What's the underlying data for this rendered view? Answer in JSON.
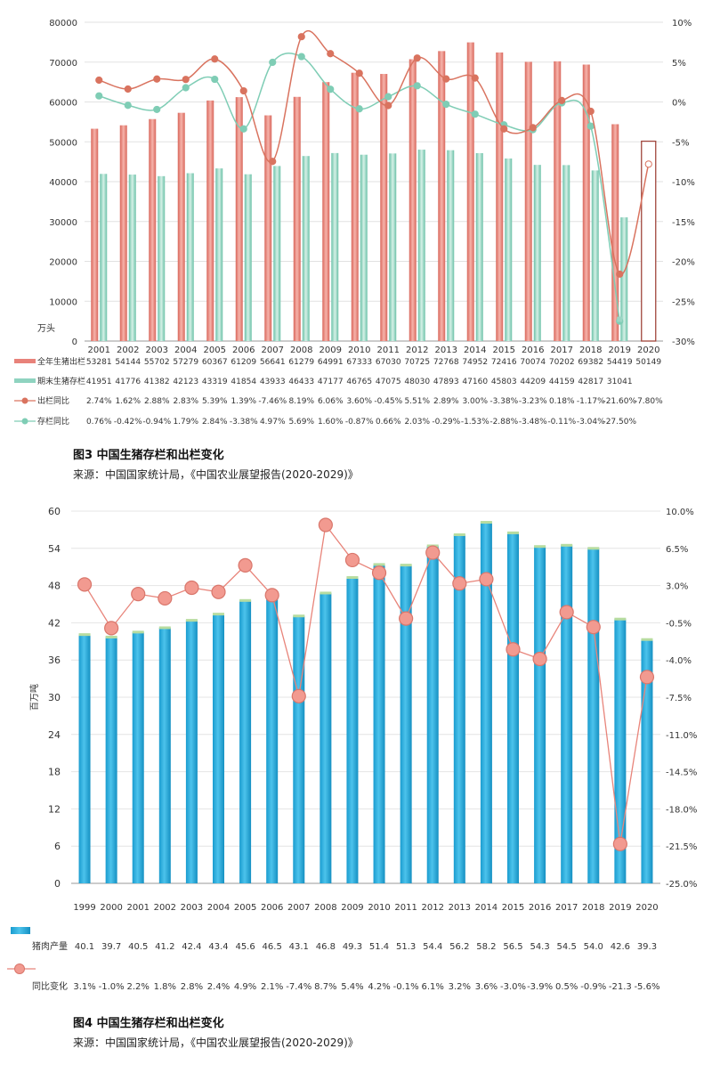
{
  "charts": [
    {
      "type": "bar",
      "years": [
        "2001",
        "2002",
        "2003",
        "2004",
        "2005",
        "2006",
        "2007",
        "2008",
        "2009",
        "2010",
        "2011",
        "2012",
        "2013",
        "2014",
        "2015",
        "2016",
        "2017",
        "2018",
        "2019",
        "2020"
      ],
      "yticks_left": [
        "0",
        "10000",
        "20000",
        "30000",
        "40000",
        "50000",
        "60000",
        "70000",
        "80000"
      ],
      "yticks_right": [
        "10%",
        "5%",
        "0%",
        "-5%",
        "-10%",
        "-15%",
        "-20%",
        "-25%",
        "-30%"
      ],
      "unit_label": "万头",
      "series": [
        {
          "name": "全年生猪出栏",
          "kind": "bar",
          "color": "#e8827a",
          "values": [
            53281,
            54144,
            55702,
            57279,
            60367,
            61209,
            56641,
            61279,
            64991,
            67333,
            67030,
            70725,
            72768,
            74952,
            72416,
            70074,
            70202,
            69382,
            54419,
            50149
          ],
          "labels": [
            "53281",
            "54144",
            "55702",
            "57279",
            "60367",
            "61209",
            "56641",
            "61279",
            "64991",
            "67333",
            "67030",
            "70725",
            "72768",
            "74952",
            "72416",
            "70074",
            "70202",
            "69382",
            "54419",
            "50149"
          ]
        },
        {
          "name": "期末生猪存栏",
          "kind": "bar",
          "color": "#8fd3c0",
          "values": [
            41951,
            41776,
            41382,
            42123,
            43319,
            41854,
            43933,
            46433,
            47177,
            46765,
            47075,
            48030,
            47893,
            47160,
            45803,
            44209,
            44159,
            42817,
            31041,
            null
          ],
          "labels": [
            "41951",
            "41776",
            "41382",
            "42123",
            "43319",
            "41854",
            "43933",
            "46433",
            "47177",
            "46765",
            "47075",
            "48030",
            "47893",
            "47160",
            "45803",
            "44209",
            "44159",
            "42817",
            "31041",
            ""
          ]
        },
        {
          "name": "出栏同比",
          "kind": "line",
          "color": "#d9735f",
          "values": [
            2.74,
            1.62,
            2.88,
            2.83,
            5.39,
            1.39,
            -7.46,
            8.19,
            6.06,
            3.6,
            -0.45,
            5.51,
            2.89,
            3.0,
            -3.38,
            -3.23,
            0.18,
            -1.17,
            -21.6,
            -7.8
          ],
          "labels": [
            "2.74%",
            "1.62%",
            "2.88%",
            "2.83%",
            "5.39%",
            "1.39%",
            "-7.46%",
            "8.19%",
            "6.06%",
            "3.60%",
            "-0.45%",
            "5.51%",
            "2.89%",
            "3.00%",
            "-3.38%",
            "-3.23%",
            "0.18%",
            "-1.17%",
            "-21.60%",
            "-7.80%"
          ]
        },
        {
          "name": "存栏同比",
          "kind": "line",
          "color": "#7fcdb5",
          "values": [
            0.76,
            -0.42,
            -0.94,
            1.79,
            2.84,
            -3.38,
            4.97,
            5.69,
            1.6,
            -0.87,
            0.66,
            2.03,
            -0.29,
            -1.53,
            -2.88,
            -3.48,
            -0.11,
            -3.04,
            -27.5,
            null
          ],
          "labels": [
            "0.76%",
            "-0.42%",
            "-0.94%",
            "1.79%",
            "2.84%",
            "-3.38%",
            "4.97%",
            "5.69%",
            "1.60%",
            "-0.87%",
            "0.66%",
            "2.03%",
            "-0.29%",
            "-1.53%",
            "-2.88%",
            "-3.48%",
            "-0.11%",
            "-3.04%",
            "-27.50%",
            ""
          ]
        }
      ],
      "ylim_left": [
        0,
        80000
      ],
      "ylim_right": [
        -30,
        10
      ],
      "caption_title": "图3  中国生猪存栏和出栏变化",
      "caption_source": "来源：中国国家统计局，《中国农业展望报告(2020-2029)》"
    },
    {
      "type": "bar",
      "years": [
        "1999",
        "2000",
        "2001",
        "2002",
        "2003",
        "2004",
        "2005",
        "2006",
        "2007",
        "2008",
        "2009",
        "2010",
        "2011",
        "2012",
        "2013",
        "2014",
        "2015",
        "2016",
        "2017",
        "2018",
        "2019",
        "2020"
      ],
      "yticks_left": [
        "0",
        "6",
        "12",
        "18",
        "24",
        "30",
        "36",
        "42",
        "48",
        "54",
        "60"
      ],
      "yticks_right": [
        "10.0%",
        "6.5%",
        "3.0%",
        "-0.5%",
        "-4.0%",
        "-7.5%",
        "-11.0%",
        "-14.5%",
        "-18.0%",
        "-21.5%",
        "-25.0%"
      ],
      "ylabel": "百万吨",
      "series": [
        {
          "name": "猪肉产量",
          "kind": "bar",
          "color": "#2aa8d8",
          "values": [
            40.1,
            39.7,
            40.5,
            41.2,
            42.4,
            43.4,
            45.6,
            46.5,
            43.1,
            46.8,
            49.3,
            51.4,
            51.3,
            54.4,
            56.2,
            58.2,
            56.5,
            54.3,
            54.5,
            54.0,
            42.6,
            39.3
          ],
          "labels": [
            "40.1",
            "39.7",
            "40.5",
            "41.2",
            "42.4",
            "43.4",
            "45.6",
            "46.5",
            "43.1",
            "46.8",
            "49.3",
            "51.4",
            "51.3",
            "54.4",
            "56.2",
            "58.2",
            "56.5",
            "54.3",
            "54.5",
            "54.0",
            "42.6",
            "39.3"
          ]
        },
        {
          "name": "同比变化",
          "kind": "line",
          "color": "#e8847a",
          "values": [
            3.1,
            -1.0,
            2.2,
            1.8,
            2.8,
            2.4,
            4.9,
            2.1,
            -7.4,
            8.7,
            5.4,
            4.2,
            -0.1,
            6.1,
            3.2,
            3.6,
            -3.0,
            -3.9,
            0.5,
            -0.9,
            -21.3,
            -5.6
          ],
          "labels": [
            "3.1%",
            "-1.0%",
            "2.2%",
            "1.8%",
            "2.8%",
            "2.4%",
            "4.9%",
            "2.1%",
            "-7.4%",
            "8.7%",
            "5.4%",
            "4.2%",
            "-0.1%",
            "6.1%",
            "3.2%",
            "3.6%",
            "-3.0%",
            "-3.9%",
            "0.5%",
            "-0.9%",
            "-21.3",
            "-5.6%"
          ]
        }
      ],
      "ylim_left": [
        0,
        60
      ],
      "ylim_right": [
        -25,
        10
      ],
      "caption_title": "图4  中国生猪存栏和出栏变化",
      "caption_source": "来源：中国国家统计局，《中国农业展望报告(2020-2029)》"
    }
  ]
}
